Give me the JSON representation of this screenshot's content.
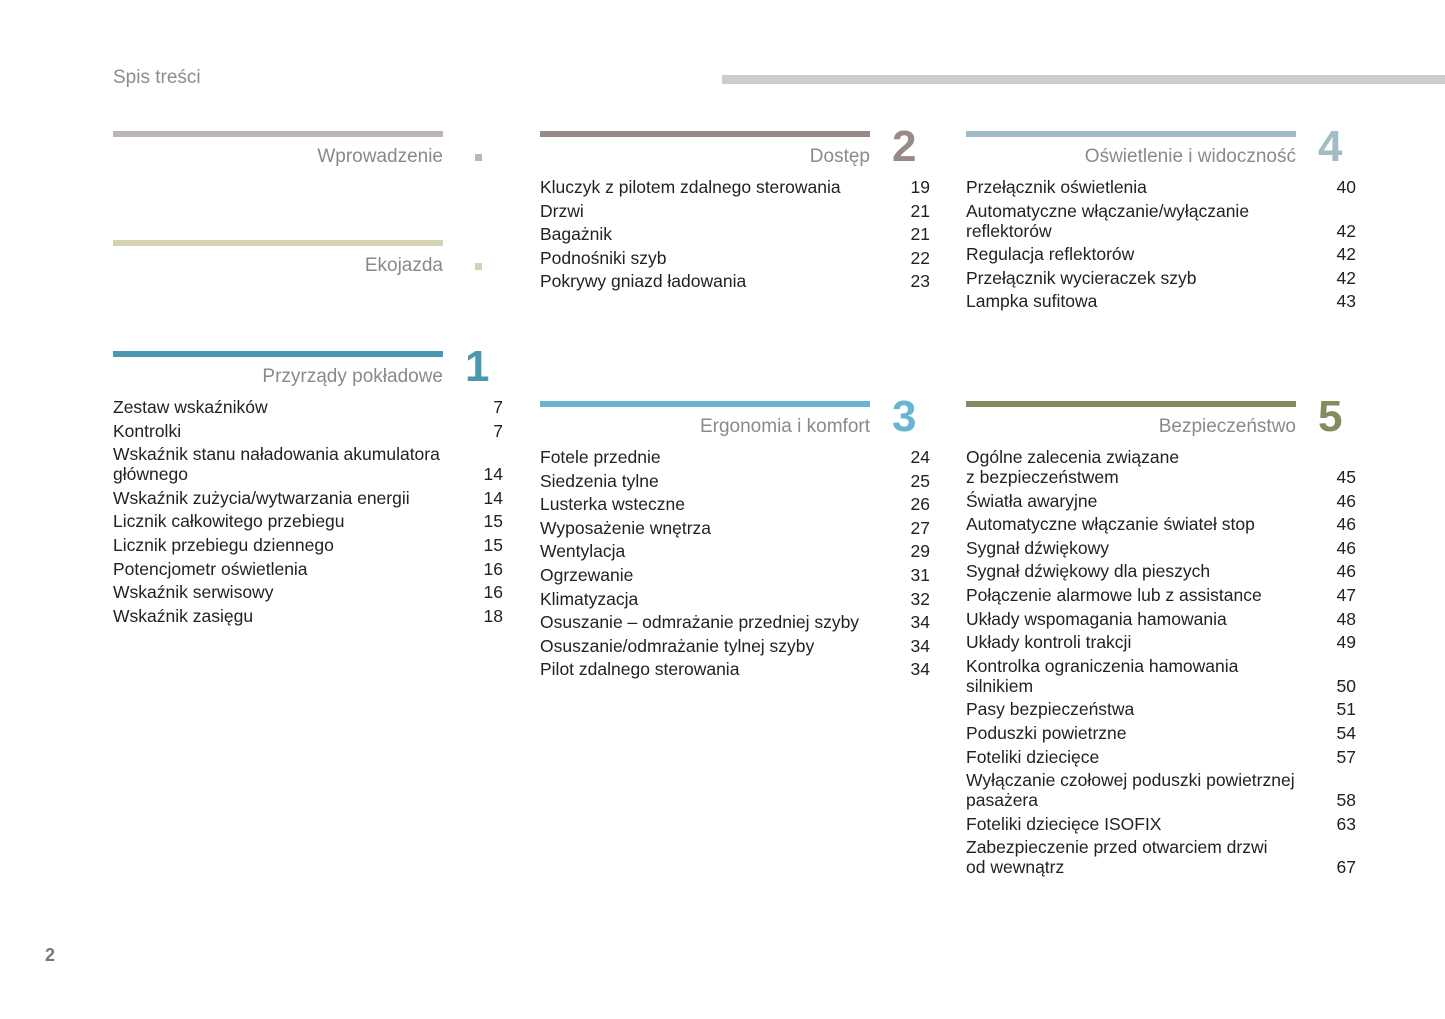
{
  "header": {
    "title": "Spis treści"
  },
  "page_number": "2",
  "sections": [
    {
      "id": "intro",
      "title": "Wprowadzenie",
      "number": "",
      "color": "#bdb3b8",
      "items": []
    },
    {
      "id": "eco",
      "title": "Ekojazda",
      "number": "",
      "color": "#d3d3b2",
      "items": []
    },
    {
      "id": "s1",
      "title": "Przyrządy pokładowe",
      "number": "1",
      "color": "#4a98b0",
      "items": [
        {
          "t": "Zestaw wskaźników",
          "p": "7"
        },
        {
          "t": "Kontrolki",
          "p": "7"
        },
        {
          "t": "Wskaźnik stanu naładowania akumulatora\ngłównego",
          "p": "14"
        },
        {
          "t": "Wskaźnik zużycia/wytwarzania energii",
          "p": "14"
        },
        {
          "t": "Licznik całkowitego przebiegu",
          "p": "15"
        },
        {
          "t": "Licznik przebiegu dziennego",
          "p": "15"
        },
        {
          "t": "Potencjometr oświetlenia",
          "p": "16"
        },
        {
          "t": "Wskaźnik serwisowy",
          "p": "16"
        },
        {
          "t": "Wskaźnik zasięgu",
          "p": "18"
        }
      ]
    },
    {
      "id": "s2",
      "title": "Dostęp",
      "number": "2",
      "color": "#9a8a87",
      "items": [
        {
          "t": "Kluczyk z pilotem zdalnego sterowania",
          "p": "19"
        },
        {
          "t": "Drzwi",
          "p": "21"
        },
        {
          "t": "Bagażnik",
          "p": "21"
        },
        {
          "t": "Podnośniki szyb",
          "p": "22"
        },
        {
          "t": "Pokrywy gniazd ładowania",
          "p": "23"
        }
      ]
    },
    {
      "id": "s3",
      "title": "Ergonomia i komfort",
      "number": "3",
      "color": "#68b5d3",
      "items": [
        {
          "t": "Fotele przednie",
          "p": "24"
        },
        {
          "t": "Siedzenia tylne",
          "p": "25"
        },
        {
          "t": "Lusterka wsteczne",
          "p": "26"
        },
        {
          "t": "Wyposażenie wnętrza",
          "p": "27"
        },
        {
          "t": "Wentylacja",
          "p": "29"
        },
        {
          "t": "Ogrzewanie",
          "p": "31"
        },
        {
          "t": "Klimatyzacja",
          "p": "32"
        },
        {
          "t": "Osuszanie – odmrażanie przedniej szyby",
          "p": "34"
        },
        {
          "t": "Osuszanie/odmrażanie tylnej szyby",
          "p": "34"
        },
        {
          "t": "Pilot zdalnego sterowania",
          "p": "34"
        }
      ]
    },
    {
      "id": "s4",
      "title": "Oświetlenie i widoczność",
      "number": "4",
      "color": "#a1bcc4",
      "items": [
        {
          "t": "Przełącznik oświetlenia",
          "p": "40"
        },
        {
          "t": "Automatyczne włączanie/wyłączanie\nreflektorów",
          "p": "42"
        },
        {
          "t": "Regulacja reflektorów",
          "p": "42"
        },
        {
          "t": "Przełącznik wycieraczek szyb",
          "p": "42"
        },
        {
          "t": "Lampka sufitowa",
          "p": "43"
        }
      ]
    },
    {
      "id": "s5",
      "title": "Bezpieczeństwo",
      "number": "5",
      "color": "#878a5f",
      "items": [
        {
          "t": "Ogólne zalecenia związane\nz bezpieczeństwem",
          "p": "45"
        },
        {
          "t": "Światła awaryjne",
          "p": "46"
        },
        {
          "t": "Automatyczne włączanie świateł stop",
          "p": "46"
        },
        {
          "t": "Sygnał dźwiękowy",
          "p": "46"
        },
        {
          "t": "Sygnał dźwiękowy dla pieszych",
          "p": "46"
        },
        {
          "t": "Połączenie alarmowe lub z assistance",
          "p": "47"
        },
        {
          "t": "Układy wspomagania hamowania",
          "p": "48"
        },
        {
          "t": "Układy kontroli trakcji",
          "p": "49"
        },
        {
          "t": "Kontrolka ograniczenia hamowania\nsilnikiem",
          "p": "50"
        },
        {
          "t": "Pasy bezpieczeństwa",
          "p": "51"
        },
        {
          "t": "Poduszki powietrzne",
          "p": "54"
        },
        {
          "t": "Foteliki dziecięce",
          "p": "57"
        },
        {
          "t": "Wyłączanie czołowej poduszki powietrznej\npasażera",
          "p": "58"
        },
        {
          "t": "Foteliki dziecięce ISOFIX",
          "p": "63"
        },
        {
          "t": "Zabezpieczenie przed otwarciem drzwi\nod wewnątrz",
          "p": "67"
        }
      ]
    }
  ]
}
